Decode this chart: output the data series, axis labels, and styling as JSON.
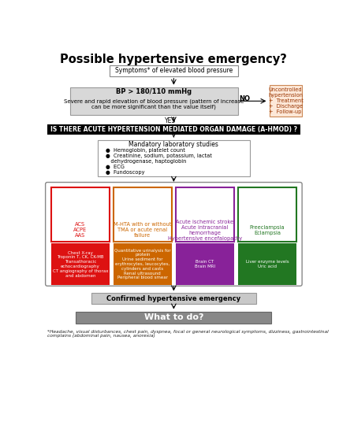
{
  "title": "Possible hypertensive emergency?",
  "bg_color": "#ffffff",
  "title_fontsize": 10.5,
  "footnote": "*Headache, visual disturbances, chest pain, dyspnea, focal or general neurological symptoms, dizziness, gastrointestinal\ncomplains (abdominal pain, nausea, anorexia)",
  "box1_text": "Symptoms* of elevated blood pressure",
  "box2_line1": "BP > 180/110 mmHg",
  "box2_line2": "Severe and rapid elevation of blood pressure (pattern of increase\ncan be more significant than the value itself)",
  "no_text": "NO",
  "no_box_text": "Uncontrolled\nhypertension\n+  Treatment\n+  Discharge\n+  Follow-up",
  "yes_text": "YES",
  "black_bar_text": "IS THERE ACUTE HYPERTENSION MEDIATED ORGAN DAMAGE (A-HMOD) ?",
  "lab_box_title": "Mandatory laboratory studies",
  "lab_box_items": "●  Hemoglobin, platelet count\n●  Creatinine, sodium, potassium, lactat\n   dehydrogenase, haptoglobin\n●  ECG\n●  Fundoscopy",
  "organ_boxes": [
    {
      "label": "ACS\nACPE\nAAS",
      "border": "#dd1111",
      "text_color": "#dd1111"
    },
    {
      "label": "M-HTA with or without\nTMA or acute renal\nfailure",
      "border": "#cc6600",
      "text_color": "#cc6600"
    },
    {
      "label": "Acute ischemic stroke\nAcute intracranial\nhemorrhage\nHypertensive encefalopathy",
      "border": "#882299",
      "text_color": "#882299"
    },
    {
      "label": "Preeclampsia\nEclampsia",
      "border": "#227722",
      "text_color": "#227722"
    }
  ],
  "test_boxes": [
    {
      "label": "Chest X-ray\nTroponin T, CK, CK-MB\nTransathoracic\nechocardiography\nCT angiography of thorax\nand abdomen",
      "bg": "#dd1111",
      "text_color": "#ffffff"
    },
    {
      "label": "Quantitative urinalysis for\nprotein\nUrine sediment for\nerythrocytes, leucocytes,\ncylinders and casts\nRenal ultrasound\nPeripheral blood smear",
      "bg": "#cc6600",
      "text_color": "#ffffff"
    },
    {
      "label": "Brain CT\nBrain MRI",
      "bg": "#882299",
      "text_color": "#ffffff"
    },
    {
      "label": "Liver enzyme levels\nUric acid",
      "bg": "#227722",
      "text_color": "#ffffff"
    }
  ],
  "confirmed_text": "Confirmed hypertensive emergency",
  "whattodo_text": "What to do?",
  "heart_icon": "♥",
  "kidney_icon": "♥",
  "brain_icon": "♥",
  "uterus_icon": "♥"
}
